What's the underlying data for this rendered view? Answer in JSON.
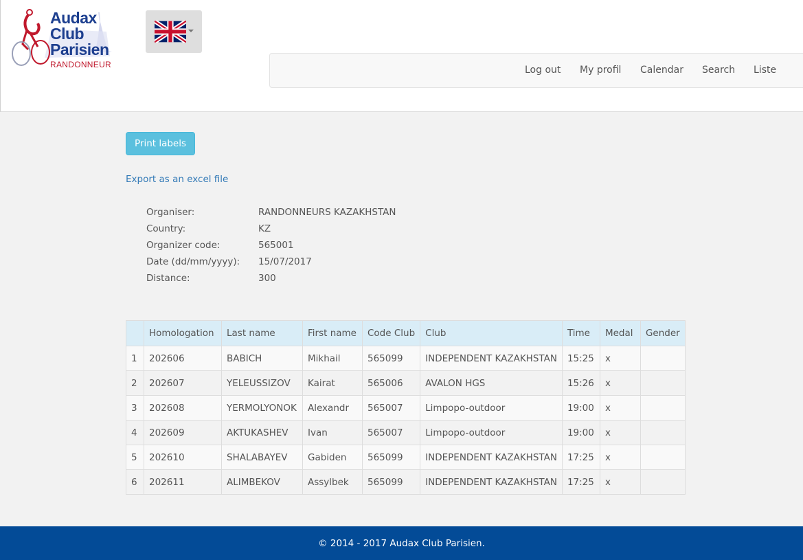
{
  "logo": {
    "line1": "Audax",
    "line2": "Club",
    "line3": "Parisien",
    "subtitle": "RANDONNEUR"
  },
  "language": {
    "icon": "uk-flag-icon"
  },
  "nav": {
    "items": [
      {
        "label": "Log out"
      },
      {
        "label": "My profil"
      },
      {
        "label": "Calendar"
      },
      {
        "label": "Search"
      },
      {
        "label": "Liste"
      }
    ]
  },
  "actions": {
    "print_label": "Print labels",
    "export_label": "Export as an excel file"
  },
  "info": [
    {
      "label": "Organiser:",
      "value": "RANDONNEURS KAZAKHSTAN"
    },
    {
      "label": "Country:",
      "value": "KZ"
    },
    {
      "label": "Organizer code:",
      "value": "565001"
    },
    {
      "label": "Date (dd/mm/yyyy):",
      "value": "15/07/2017"
    },
    {
      "label": "Distance:",
      "value": "300"
    }
  ],
  "table": {
    "columns": [
      "",
      "Homologation",
      "Last name",
      "First name",
      "Code Club",
      "Club",
      "Time",
      "Medal",
      "Gender"
    ],
    "rows": [
      [
        "1",
        "202606",
        "BABICH",
        "Mikhail",
        "565099",
        "INDEPENDENT KAZAKHSTAN",
        "15:25",
        "x",
        ""
      ],
      [
        "2",
        "202607",
        "YELEUSSIZOV",
        "Kairat",
        "565006",
        "AVALON HGS",
        "15:26",
        "x",
        ""
      ],
      [
        "3",
        "202608",
        "YERMOLYONOK",
        "Alexandr",
        "565007",
        "Limpopo-outdoor",
        "19:00",
        "x",
        ""
      ],
      [
        "4",
        "202609",
        "AKTUKASHEV",
        "Ivan",
        "565007",
        "Limpopo-outdoor",
        "19:00",
        "x",
        ""
      ],
      [
        "5",
        "202610",
        "SHALABAYEV",
        "Gabiden",
        "565099",
        "INDEPENDENT KAZAKHSTAN",
        "17:25",
        "x",
        ""
      ],
      [
        "6",
        "202611",
        "ALIMBEKOV",
        "Assylbek",
        "565099",
        "INDEPENDENT KAZAKHSTAN",
        "17:25",
        "x",
        ""
      ]
    ]
  },
  "footer": {
    "text": "© 2014 - 2017 Audax Club Parisien."
  },
  "colors": {
    "footer_bg": "#034b97",
    "print_button": "#5bc0de",
    "link": "#337ab7",
    "table_header": "#d9edf7",
    "logo_blue": "#1d3f8f",
    "logo_red": "#c0182c"
  }
}
